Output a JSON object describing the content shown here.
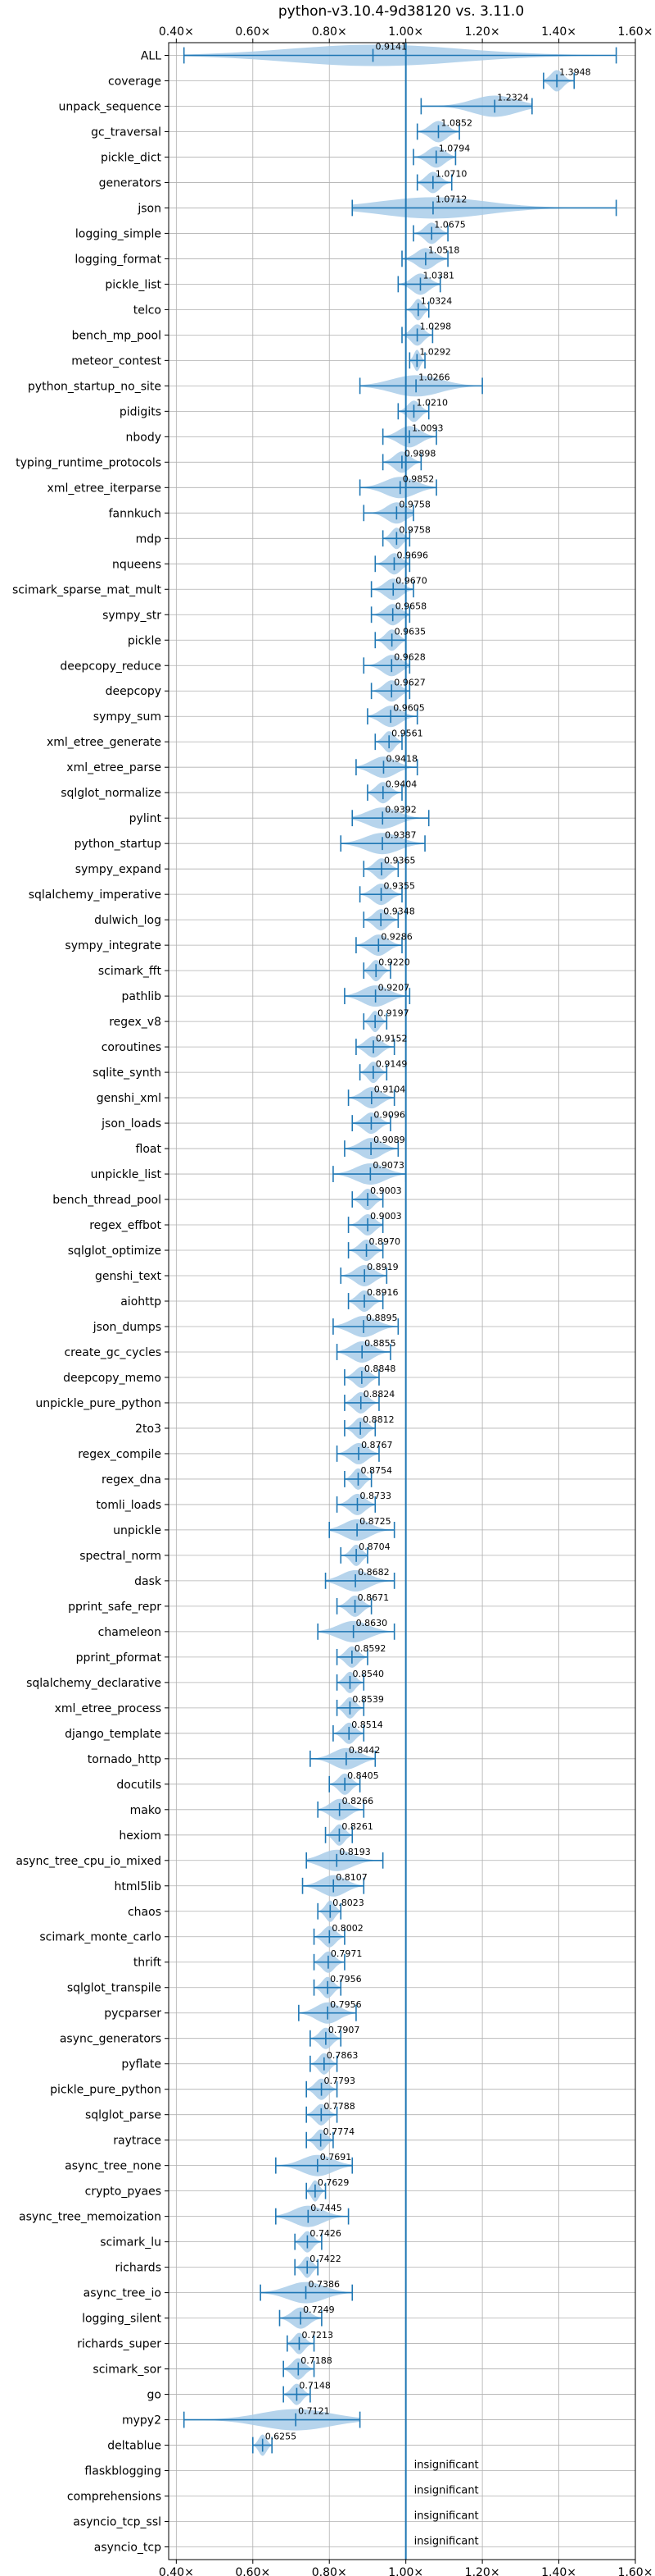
{
  "chart_data": {
    "type": "violin",
    "title": "python-v3.10.4-9d38120 vs. 3.11.0",
    "xlim": [
      0.38,
      1.6
    ],
    "x_ticks": [
      {
        "value": 0.4,
        "label": "0.40×"
      },
      {
        "value": 0.6,
        "label": "0.60×"
      },
      {
        "value": 0.8,
        "label": "0.80×"
      },
      {
        "value": 1.0,
        "label": "1.00×"
      },
      {
        "value": 1.2,
        "label": "1.20×"
      },
      {
        "value": 1.4,
        "label": "1.40×"
      },
      {
        "value": 1.6,
        "label": "1.60×"
      }
    ],
    "grid": true,
    "reference_line": 1.0,
    "colors": {
      "violin": "#a9cde9",
      "line": "#1f77b4",
      "grid": "#b0b0b0"
    },
    "benchmarks": [
      {
        "name": "ALL",
        "value": 0.9141,
        "label": "0.9141",
        "min": 0.42,
        "max": 1.55,
        "q1": 0.87,
        "q3": 0.97
      },
      {
        "name": "coverage",
        "value": 1.3948,
        "label": "1.3948",
        "min": 1.36,
        "max": 1.44
      },
      {
        "name": "unpack_sequence",
        "value": 1.2324,
        "label": "1.2324",
        "min": 1.04,
        "max": 1.33
      },
      {
        "name": "gc_traversal",
        "value": 1.0852,
        "label": "1.0852",
        "min": 1.03,
        "max": 1.14
      },
      {
        "name": "pickle_dict",
        "value": 1.0794,
        "label": "1.0794",
        "min": 1.02,
        "max": 1.13
      },
      {
        "name": "generators",
        "value": 1.071,
        "label": "1.0710",
        "min": 1.03,
        "max": 1.12
      },
      {
        "name": "json",
        "value": 1.0712,
        "label": "1.0712",
        "min": 0.86,
        "max": 1.55
      },
      {
        "name": "logging_simple",
        "value": 1.0675,
        "label": "1.0675",
        "min": 1.02,
        "max": 1.11
      },
      {
        "name": "logging_format",
        "value": 1.0518,
        "label": "1.0518",
        "min": 0.99,
        "max": 1.11
      },
      {
        "name": "pickle_list",
        "value": 1.0381,
        "label": "1.0381",
        "min": 0.98,
        "max": 1.09
      },
      {
        "name": "telco",
        "value": 1.0324,
        "label": "1.0324",
        "min": 1.0,
        "max": 1.06
      },
      {
        "name": "bench_mp_pool",
        "value": 1.0298,
        "label": "1.0298",
        "min": 0.99,
        "max": 1.07
      },
      {
        "name": "meteor_contest",
        "value": 1.0292,
        "label": "1.0292",
        "min": 1.01,
        "max": 1.05
      },
      {
        "name": "python_startup_no_site",
        "value": 1.0266,
        "label": "1.0266",
        "min": 0.88,
        "max": 1.2
      },
      {
        "name": "pidigits",
        "value": 1.021,
        "label": "1.0210",
        "min": 0.98,
        "max": 1.06
      },
      {
        "name": "nbody",
        "value": 1.0093,
        "label": "1.0093",
        "min": 0.94,
        "max": 1.08
      },
      {
        "name": "typing_runtime_protocols",
        "value": 0.9898,
        "label": "0.9898",
        "min": 0.94,
        "max": 1.04
      },
      {
        "name": "xml_etree_iterparse",
        "value": 0.9852,
        "label": "0.9852",
        "min": 0.88,
        "max": 1.08
      },
      {
        "name": "fannkuch",
        "value": 0.9758,
        "label": "0.9758",
        "min": 0.89,
        "max": 1.02
      },
      {
        "name": "mdp",
        "value": 0.9758,
        "label": "0.9758",
        "min": 0.94,
        "max": 1.01
      },
      {
        "name": "nqueens",
        "value": 0.9696,
        "label": "0.9696",
        "min": 0.92,
        "max": 1.01
      },
      {
        "name": "scimark_sparse_mat_mult",
        "value": 0.967,
        "label": "0.9670",
        "min": 0.91,
        "max": 1.02
      },
      {
        "name": "sympy_str",
        "value": 0.9658,
        "label": "0.9658",
        "min": 0.91,
        "max": 1.01
      },
      {
        "name": "pickle",
        "value": 0.9635,
        "label": "0.9635",
        "min": 0.92,
        "max": 1.0
      },
      {
        "name": "deepcopy_reduce",
        "value": 0.9628,
        "label": "0.9628",
        "min": 0.89,
        "max": 1.01
      },
      {
        "name": "deepcopy",
        "value": 0.9627,
        "label": "0.9627",
        "min": 0.91,
        "max": 1.01
      },
      {
        "name": "sympy_sum",
        "value": 0.9605,
        "label": "0.9605",
        "min": 0.9,
        "max": 1.03
      },
      {
        "name": "xml_etree_generate",
        "value": 0.9561,
        "label": "0.9561",
        "min": 0.92,
        "max": 0.99
      },
      {
        "name": "xml_etree_parse",
        "value": 0.9418,
        "label": "0.9418",
        "min": 0.87,
        "max": 1.03
      },
      {
        "name": "sqlglot_normalize",
        "value": 0.9404,
        "label": "0.9404",
        "min": 0.9,
        "max": 0.99
      },
      {
        "name": "pylint",
        "value": 0.9392,
        "label": "0.9392",
        "min": 0.86,
        "max": 1.06
      },
      {
        "name": "python_startup",
        "value": 0.9387,
        "label": "0.9387",
        "min": 0.83,
        "max": 1.05
      },
      {
        "name": "sympy_expand",
        "value": 0.9365,
        "label": "0.9365",
        "min": 0.89,
        "max": 0.98
      },
      {
        "name": "sqlalchemy_imperative",
        "value": 0.9355,
        "label": "0.9355",
        "min": 0.88,
        "max": 0.99
      },
      {
        "name": "dulwich_log",
        "value": 0.9348,
        "label": "0.9348",
        "min": 0.89,
        "max": 0.98
      },
      {
        "name": "sympy_integrate",
        "value": 0.9286,
        "label": "0.9286",
        "min": 0.87,
        "max": 0.99
      },
      {
        "name": "scimark_fft",
        "value": 0.922,
        "label": "0.9220",
        "min": 0.89,
        "max": 0.96
      },
      {
        "name": "pathlib",
        "value": 0.9207,
        "label": "0.9207",
        "min": 0.84,
        "max": 1.01
      },
      {
        "name": "regex_v8",
        "value": 0.9197,
        "label": "0.9197",
        "min": 0.89,
        "max": 0.95
      },
      {
        "name": "coroutines",
        "value": 0.9152,
        "label": "0.9152",
        "min": 0.87,
        "max": 0.97
      },
      {
        "name": "sqlite_synth",
        "value": 0.9149,
        "label": "0.9149",
        "min": 0.88,
        "max": 0.95
      },
      {
        "name": "genshi_xml",
        "value": 0.9104,
        "label": "0.9104",
        "min": 0.85,
        "max": 0.97
      },
      {
        "name": "json_loads",
        "value": 0.9096,
        "label": "0.9096",
        "min": 0.86,
        "max": 0.96
      },
      {
        "name": "float",
        "value": 0.9089,
        "label": "0.9089",
        "min": 0.84,
        "max": 0.98
      },
      {
        "name": "unpickle_list",
        "value": 0.9073,
        "label": "0.9073",
        "min": 0.81,
        "max": 1.0
      },
      {
        "name": "bench_thread_pool",
        "value": 0.9003,
        "label": "0.9003",
        "min": 0.86,
        "max": 0.94
      },
      {
        "name": "regex_effbot",
        "value": 0.9003,
        "label": "0.9003",
        "min": 0.85,
        "max": 0.94
      },
      {
        "name": "sqlglot_optimize",
        "value": 0.897,
        "label": "0.8970",
        "min": 0.85,
        "max": 0.94
      },
      {
        "name": "genshi_text",
        "value": 0.8919,
        "label": "0.8919",
        "min": 0.83,
        "max": 0.95
      },
      {
        "name": "aiohttp",
        "value": 0.8916,
        "label": "0.8916",
        "min": 0.85,
        "max": 0.94
      },
      {
        "name": "json_dumps",
        "value": 0.8895,
        "label": "0.8895",
        "min": 0.81,
        "max": 0.98
      },
      {
        "name": "create_gc_cycles",
        "value": 0.8855,
        "label": "0.8855",
        "min": 0.82,
        "max": 0.96
      },
      {
        "name": "deepcopy_memo",
        "value": 0.8848,
        "label": "0.8848",
        "min": 0.84,
        "max": 0.93
      },
      {
        "name": "unpickle_pure_python",
        "value": 0.8824,
        "label": "0.8824",
        "min": 0.84,
        "max": 0.93
      },
      {
        "name": "2to3",
        "value": 0.8812,
        "label": "0.8812",
        "min": 0.84,
        "max": 0.92
      },
      {
        "name": "regex_compile",
        "value": 0.8767,
        "label": "0.8767",
        "min": 0.82,
        "max": 0.93
      },
      {
        "name": "regex_dna",
        "value": 0.8754,
        "label": "0.8754",
        "min": 0.84,
        "max": 0.91
      },
      {
        "name": "tomli_loads",
        "value": 0.8733,
        "label": "0.8733",
        "min": 0.82,
        "max": 0.92
      },
      {
        "name": "unpickle",
        "value": 0.8725,
        "label": "0.8725",
        "min": 0.8,
        "max": 0.97
      },
      {
        "name": "spectral_norm",
        "value": 0.8704,
        "label": "0.8704",
        "min": 0.83,
        "max": 0.9
      },
      {
        "name": "dask",
        "value": 0.8682,
        "label": "0.8682",
        "min": 0.79,
        "max": 0.97
      },
      {
        "name": "pprint_safe_repr",
        "value": 0.8671,
        "label": "0.8671",
        "min": 0.82,
        "max": 0.91
      },
      {
        "name": "chameleon",
        "value": 0.863,
        "label": "0.8630",
        "min": 0.77,
        "max": 0.97
      },
      {
        "name": "pprint_pformat",
        "value": 0.8592,
        "label": "0.8592",
        "min": 0.82,
        "max": 0.9
      },
      {
        "name": "sqlalchemy_declarative",
        "value": 0.854,
        "label": "0.8540",
        "min": 0.82,
        "max": 0.89
      },
      {
        "name": "xml_etree_process",
        "value": 0.8539,
        "label": "0.8539",
        "min": 0.82,
        "max": 0.89
      },
      {
        "name": "django_template",
        "value": 0.8514,
        "label": "0.8514",
        "min": 0.81,
        "max": 0.89
      },
      {
        "name": "tornado_http",
        "value": 0.8442,
        "label": "0.8442",
        "min": 0.75,
        "max": 0.92
      },
      {
        "name": "docutils",
        "value": 0.8405,
        "label": "0.8405",
        "min": 0.8,
        "max": 0.88
      },
      {
        "name": "mako",
        "value": 0.8266,
        "label": "0.8266",
        "min": 0.77,
        "max": 0.89
      },
      {
        "name": "hexiom",
        "value": 0.8261,
        "label": "0.8261",
        "min": 0.79,
        "max": 0.86
      },
      {
        "name": "async_tree_cpu_io_mixed",
        "value": 0.8193,
        "label": "0.8193",
        "min": 0.74,
        "max": 0.94
      },
      {
        "name": "html5lib",
        "value": 0.8107,
        "label": "0.8107",
        "min": 0.73,
        "max": 0.89
      },
      {
        "name": "chaos",
        "value": 0.8023,
        "label": "0.8023",
        "min": 0.77,
        "max": 0.83
      },
      {
        "name": "scimark_monte_carlo",
        "value": 0.8002,
        "label": "0.8002",
        "min": 0.76,
        "max": 0.84
      },
      {
        "name": "thrift",
        "value": 0.7971,
        "label": "0.7971",
        "min": 0.76,
        "max": 0.84
      },
      {
        "name": "sqlglot_transpile",
        "value": 0.7956,
        "label": "0.7956",
        "min": 0.76,
        "max": 0.83
      },
      {
        "name": "pycparser",
        "value": 0.7956,
        "label": "0.7956",
        "min": 0.72,
        "max": 0.87
      },
      {
        "name": "async_generators",
        "value": 0.7907,
        "label": "0.7907",
        "min": 0.75,
        "max": 0.83
      },
      {
        "name": "pyflate",
        "value": 0.7863,
        "label": "0.7863",
        "min": 0.75,
        "max": 0.82
      },
      {
        "name": "pickle_pure_python",
        "value": 0.7793,
        "label": "0.7793",
        "min": 0.74,
        "max": 0.82
      },
      {
        "name": "sqlglot_parse",
        "value": 0.7788,
        "label": "0.7788",
        "min": 0.74,
        "max": 0.82
      },
      {
        "name": "raytrace",
        "value": 0.7774,
        "label": "0.7774",
        "min": 0.74,
        "max": 0.81
      },
      {
        "name": "async_tree_none",
        "value": 0.7691,
        "label": "0.7691",
        "min": 0.66,
        "max": 0.86
      },
      {
        "name": "crypto_pyaes",
        "value": 0.7629,
        "label": "0.7629",
        "min": 0.74,
        "max": 0.79
      },
      {
        "name": "async_tree_memoization",
        "value": 0.7445,
        "label": "0.7445",
        "min": 0.66,
        "max": 0.85
      },
      {
        "name": "scimark_lu",
        "value": 0.7426,
        "label": "0.7426",
        "min": 0.71,
        "max": 0.78
      },
      {
        "name": "richards",
        "value": 0.7422,
        "label": "0.7422",
        "min": 0.71,
        "max": 0.77
      },
      {
        "name": "async_tree_io",
        "value": 0.7386,
        "label": "0.7386",
        "min": 0.62,
        "max": 0.86
      },
      {
        "name": "logging_silent",
        "value": 0.7249,
        "label": "0.7249",
        "min": 0.67,
        "max": 0.78
      },
      {
        "name": "richards_super",
        "value": 0.7213,
        "label": "0.7213",
        "min": 0.69,
        "max": 0.76
      },
      {
        "name": "scimark_sor",
        "value": 0.7188,
        "label": "0.7188",
        "min": 0.68,
        "max": 0.76
      },
      {
        "name": "go",
        "value": 0.7148,
        "label": "0.7148",
        "min": 0.68,
        "max": 0.75
      },
      {
        "name": "mypy2",
        "value": 0.7121,
        "label": "0.7121",
        "min": 0.42,
        "max": 0.88
      },
      {
        "name": "deltablue",
        "value": 0.6255,
        "label": "0.6255",
        "min": 0.6,
        "max": 0.65
      },
      {
        "name": "flaskblogging",
        "value": null,
        "label": "insignificant"
      },
      {
        "name": "comprehensions",
        "value": null,
        "label": "insignificant"
      },
      {
        "name": "asyncio_tcp_ssl",
        "value": null,
        "label": "insignificant"
      },
      {
        "name": "asyncio_tcp",
        "value": null,
        "label": "insignificant"
      }
    ]
  }
}
